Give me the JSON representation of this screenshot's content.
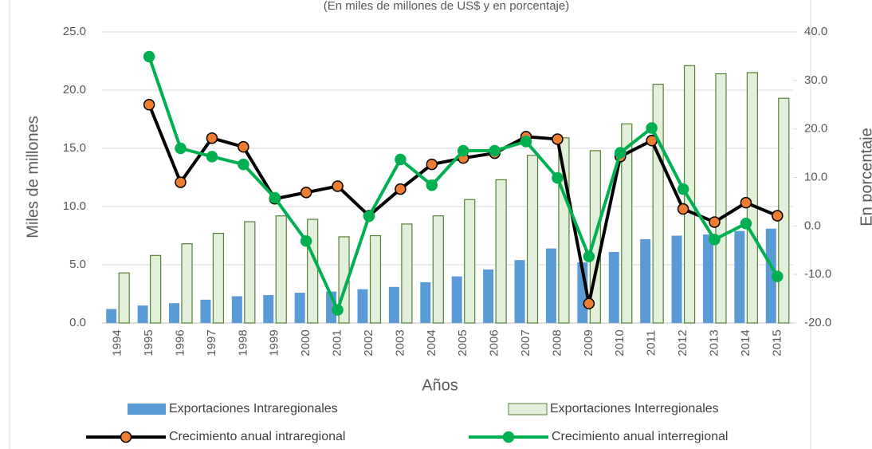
{
  "chart_data": {
    "type": "bar",
    "subtitle": "(En miles de millones de US$ y en porcentaje)",
    "x_label": "Años",
    "y_label": "Miles de millones",
    "y2_label": "En porcentaje",
    "categories": [
      "1994",
      "1995",
      "1996",
      "1997",
      "1998",
      "1999",
      "2000",
      "2001",
      "2002",
      "2003",
      "2004",
      "2005",
      "2006",
      "2007",
      "2008",
      "2009",
      "2010",
      "2011",
      "2012",
      "2013",
      "2014",
      "2015"
    ],
    "series": [
      {
        "name": "Exportaciones Intraregionales",
        "type": "bar",
        "color": "#5b9bd5",
        "values": [
          1.2,
          1.5,
          1.7,
          2.0,
          2.3,
          2.4,
          2.6,
          2.7,
          2.9,
          3.1,
          3.5,
          4.0,
          4.6,
          5.4,
          6.4,
          5.2,
          6.1,
          7.2,
          7.5,
          7.6,
          7.9,
          8.1
        ]
      },
      {
        "name": "Exportaciones Interregionales",
        "type": "bar",
        "color": "#e2efda",
        "edge_color": "#548235",
        "values": [
          4.3,
          5.8,
          6.8,
          7.7,
          8.7,
          9.2,
          8.9,
          7.4,
          7.5,
          8.5,
          9.2,
          10.6,
          12.3,
          14.4,
          15.9,
          14.8,
          17.1,
          20.5,
          22.1,
          21.4,
          21.5,
          19.3
        ]
      },
      {
        "name": "Crecimiento anual intraregional",
        "type": "line",
        "axis": "y2",
        "color": "#000000",
        "marker_color": "#ed7d31",
        "values": [
          null,
          25.0,
          9.0,
          18.1,
          16.3,
          5.6,
          6.9,
          8.2,
          2.1,
          7.6,
          12.7,
          14.0,
          15.0,
          18.4,
          17.9,
          -16.0,
          14.3,
          17.6,
          3.5,
          0.8,
          4.8,
          2.1
        ]
      },
      {
        "name": "Crecimiento anual interregional",
        "type": "line",
        "axis": "y2",
        "color": "#00b050",
        "marker_color": "#00b050",
        "values": [
          null,
          34.9,
          16.0,
          14.3,
          12.7,
          5.8,
          -3.1,
          -17.3,
          2.0,
          13.7,
          8.4,
          15.5,
          15.5,
          17.4,
          9.9,
          -6.3,
          15.1,
          20.2,
          7.6,
          -2.8,
          0.5,
          -10.4
        ]
      }
    ],
    "ylim": [
      0,
      25
    ],
    "yticks": [
      {
        "value": 0,
        "label": "0.0"
      },
      {
        "value": 5,
        "label": "5.0"
      },
      {
        "value": 10,
        "label": "10.0"
      },
      {
        "value": 15,
        "label": "15.0"
      },
      {
        "value": 20,
        "label": "20.0"
      },
      {
        "value": 25,
        "label": "25.0"
      }
    ],
    "y2lim": [
      -20,
      40
    ],
    "y2ticks": [
      {
        "value": -20,
        "label": "-20.0"
      },
      {
        "value": -10,
        "label": "-10.0"
      },
      {
        "value": 0,
        "label": "0.0"
      },
      {
        "value": 10,
        "label": "10.0"
      },
      {
        "value": 20,
        "label": "20.0"
      },
      {
        "value": 30,
        "label": "30.0"
      },
      {
        "value": 40,
        "label": "40.0"
      }
    ],
    "grid": true
  }
}
